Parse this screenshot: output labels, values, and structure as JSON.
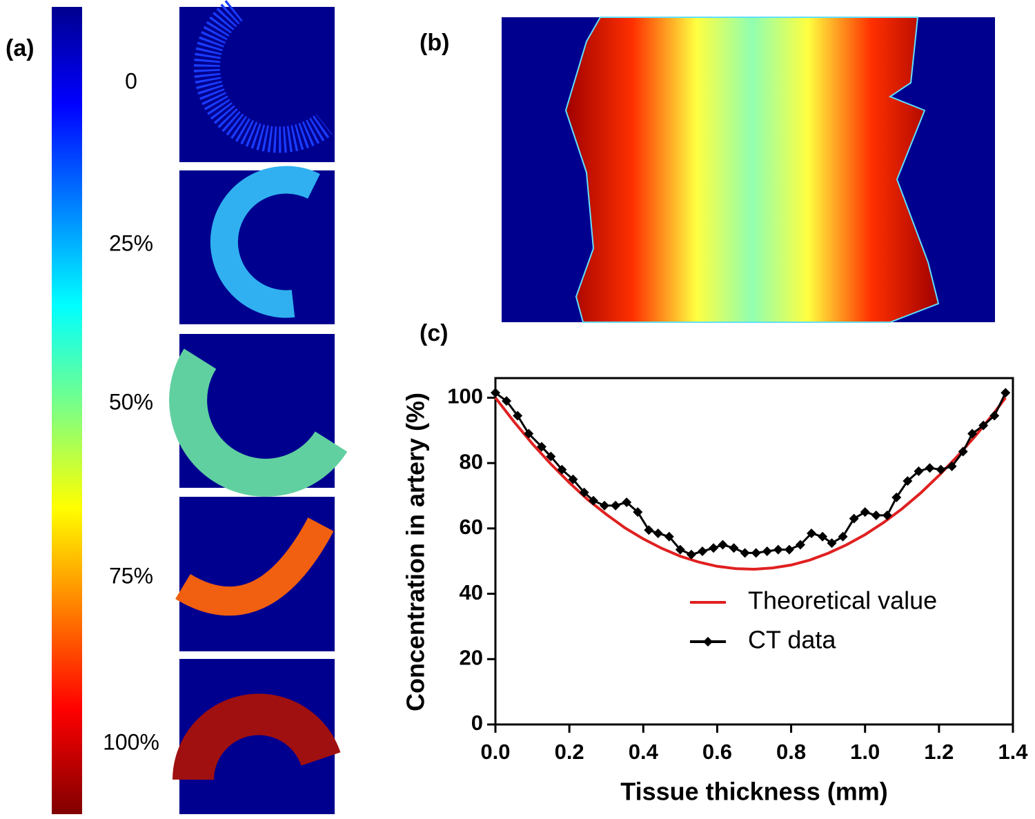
{
  "panel_labels": [
    "(a)",
    "(b)",
    "(c)"
  ],
  "colorbar_labels": [
    "0",
    "25%",
    "50%",
    "75%",
    "100%"
  ],
  "chart_data": {
    "type": "line",
    "xlabel": "Tissue thickness (mm)",
    "ylabel": "Concentration in artery (%)",
    "xlim": [
      0,
      1.4
    ],
    "ylim": [
      0,
      106
    ],
    "xticks": [
      {
        "value": 0,
        "label": "0.0"
      },
      0.2,
      0.4,
      0.6,
      0.8,
      {
        "value": 1,
        "label": "1.0"
      },
      1.2,
      1.4
    ],
    "yticks": [
      0,
      20,
      40,
      60,
      80,
      100
    ],
    "series": [
      {
        "name": "Theoretical value",
        "color": "#e02020",
        "marker": "none",
        "x": [
          0,
          0.05,
          0.1,
          0.15,
          0.2,
          0.25,
          0.3,
          0.35,
          0.4,
          0.45,
          0.5,
          0.55,
          0.6,
          0.65,
          0.7,
          0.75,
          0.8,
          0.85,
          0.9,
          0.95,
          1.0,
          1.05,
          1.1,
          1.15,
          1.2,
          1.25,
          1.3,
          1.35,
          1.38
        ],
        "values": [
          100,
          92.7,
          85.9,
          79.7,
          74.0,
          68.8,
          64.3,
          60.2,
          56.8,
          53.9,
          51.5,
          49.7,
          48.4,
          47.7,
          47.5,
          47.9,
          48.8,
          50.3,
          52.4,
          55.0,
          58.1,
          61.8,
          66.0,
          70.8,
          76.2,
          82.1,
          88.5,
          95.5,
          100
        ]
      },
      {
        "name": "CT data",
        "color": "#000000",
        "marker": "diamond",
        "x": [
          0,
          0.03,
          0.06,
          0.09,
          0.125,
          0.15,
          0.18,
          0.21,
          0.24,
          0.265,
          0.295,
          0.325,
          0.355,
          0.385,
          0.415,
          0.44,
          0.47,
          0.5,
          0.53,
          0.56,
          0.59,
          0.615,
          0.645,
          0.675,
          0.705,
          0.735,
          0.765,
          0.795,
          0.825,
          0.855,
          0.885,
          0.91,
          0.94,
          0.97,
          1.0,
          1.03,
          1.06,
          1.085,
          1.115,
          1.145,
          1.175,
          1.205,
          1.235,
          1.265,
          1.29,
          1.32,
          1.35,
          1.38
        ],
        "values": [
          101.5,
          99,
          94.5,
          89,
          85,
          82,
          78,
          75,
          71,
          68.5,
          67,
          67,
          68,
          65,
          59.5,
          58.5,
          57.5,
          53.5,
          52,
          53,
          54,
          55,
          54,
          52.5,
          52.5,
          53,
          53.5,
          53.5,
          55,
          58.5,
          57.5,
          55.5,
          57.5,
          63,
          65,
          64,
          64,
          69.5,
          74.5,
          77.5,
          78.5,
          78,
          79,
          83.5,
          89,
          91.5,
          94.5,
          101.5
        ]
      }
    ]
  }
}
